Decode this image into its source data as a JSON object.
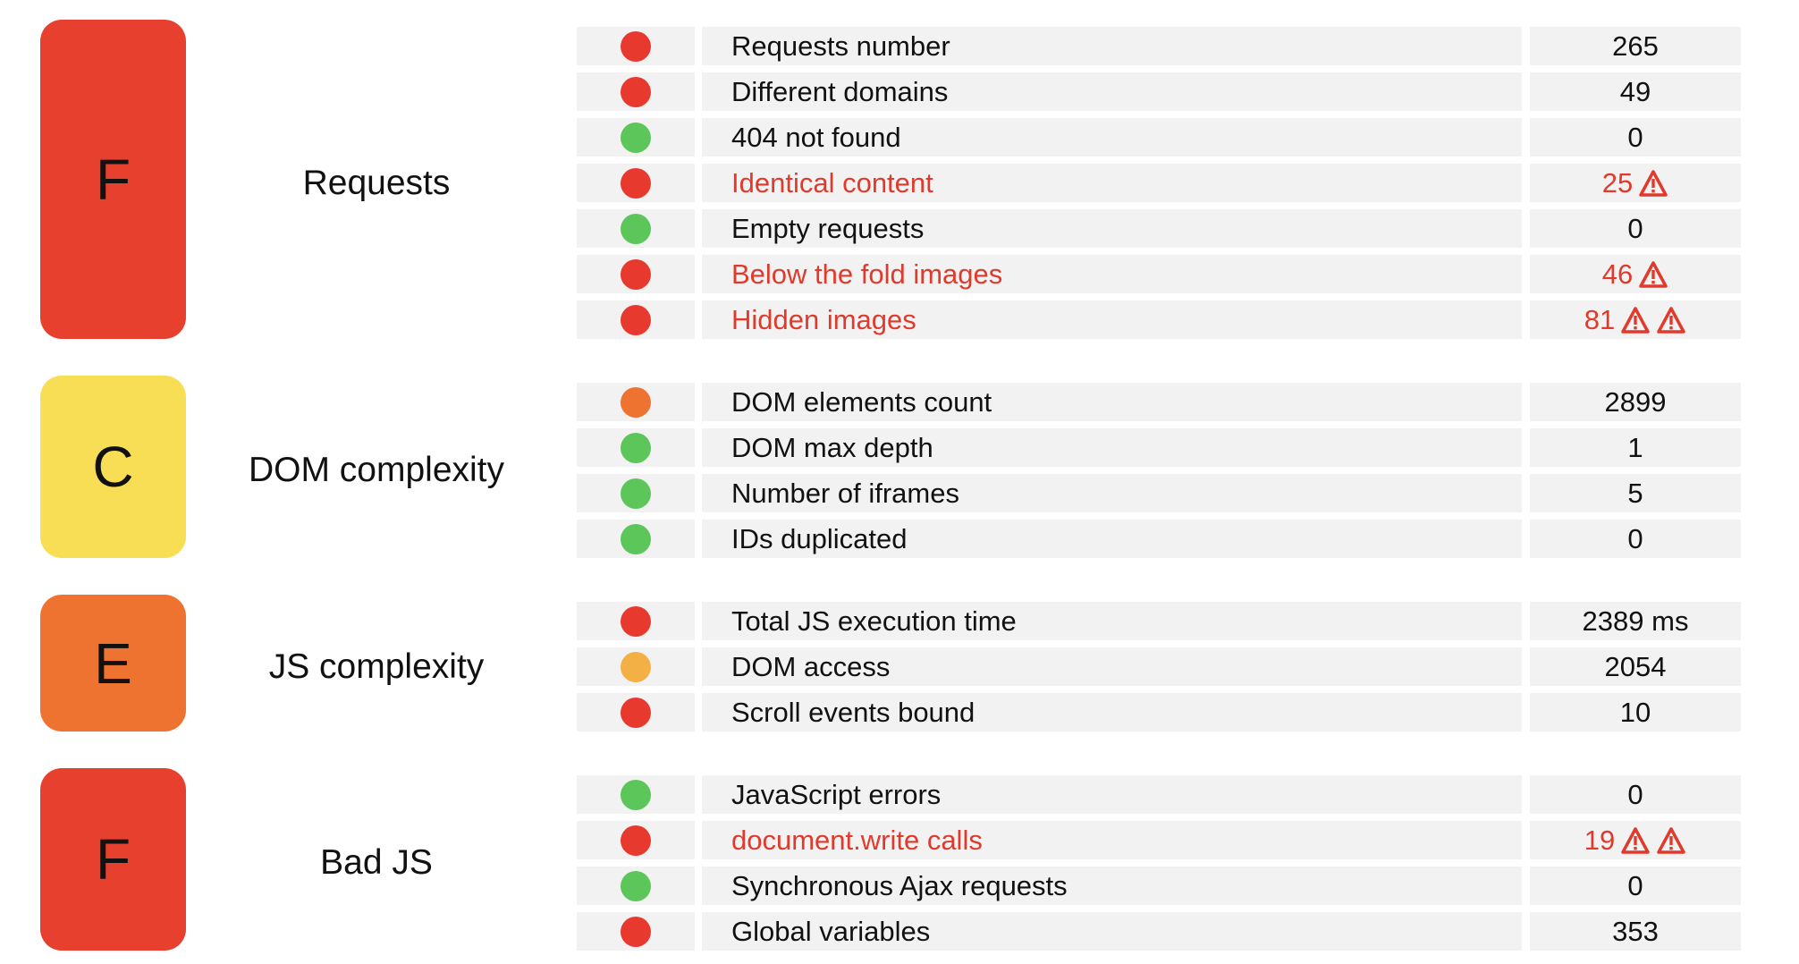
{
  "groups": [
    {
      "grade": "F",
      "grade_color": "#e8402f",
      "name": "Requests",
      "rows": [
        {
          "status": "#e8392f",
          "label": "Requests number",
          "value": 265,
          "highlight": false,
          "warnings": 0
        },
        {
          "status": "#e8392f",
          "label": "Different domains",
          "value": 49,
          "highlight": false,
          "warnings": 0
        },
        {
          "status": "#5cc65a",
          "label": "404 not found",
          "value": 0,
          "highlight": false,
          "warnings": 0
        },
        {
          "status": "#e8392f",
          "label": "Identical content",
          "value": 25,
          "highlight": true,
          "warnings": 1
        },
        {
          "status": "#5cc65a",
          "label": "Empty requests",
          "value": 0,
          "highlight": false,
          "warnings": 0
        },
        {
          "status": "#e8392f",
          "label": "Below the fold images",
          "value": 46,
          "highlight": true,
          "warnings": 1
        },
        {
          "status": "#e8392f",
          "label": "Hidden images",
          "value": 81,
          "highlight": true,
          "warnings": 2
        }
      ]
    },
    {
      "grade": "C",
      "grade_color": "#f8de55",
      "name": "DOM complexity",
      "rows": [
        {
          "status": "#ee7230",
          "label": "DOM elements count",
          "value": 2899,
          "highlight": false,
          "warnings": 0
        },
        {
          "status": "#5cc65a",
          "label": "DOM max depth",
          "value": 1,
          "highlight": false,
          "warnings": 0
        },
        {
          "status": "#5cc65a",
          "label": "Number of iframes",
          "value": 5,
          "highlight": false,
          "warnings": 0
        },
        {
          "status": "#5cc65a",
          "label": "IDs duplicated",
          "value": 0,
          "highlight": false,
          "warnings": 0
        }
      ]
    },
    {
      "grade": "E",
      "grade_color": "#ee7230",
      "name": "JS complexity",
      "rows": [
        {
          "status": "#e8392f",
          "label": "Total JS execution time",
          "value": "2389 ms",
          "highlight": false,
          "warnings": 0
        },
        {
          "status": "#f2b045",
          "label": "DOM access",
          "value": 2054,
          "highlight": false,
          "warnings": 0
        },
        {
          "status": "#e8392f",
          "label": "Scroll events bound",
          "value": 10,
          "highlight": false,
          "warnings": 0
        }
      ]
    },
    {
      "grade": "F",
      "grade_color": "#e8402f",
      "name": "Bad JS",
      "rows": [
        {
          "status": "#5cc65a",
          "label": "JavaScript errors",
          "value": 0,
          "highlight": false,
          "warnings": 0
        },
        {
          "status": "#e8392f",
          "label": "document.write calls",
          "value": 19,
          "highlight": true,
          "warnings": 2
        },
        {
          "status": "#5cc65a",
          "label": "Synchronous Ajax requests",
          "value": 0,
          "highlight": false,
          "warnings": 0
        },
        {
          "status": "#e8392f",
          "label": "Global variables",
          "value": 353,
          "highlight": false,
          "warnings": 0
        }
      ]
    }
  ]
}
